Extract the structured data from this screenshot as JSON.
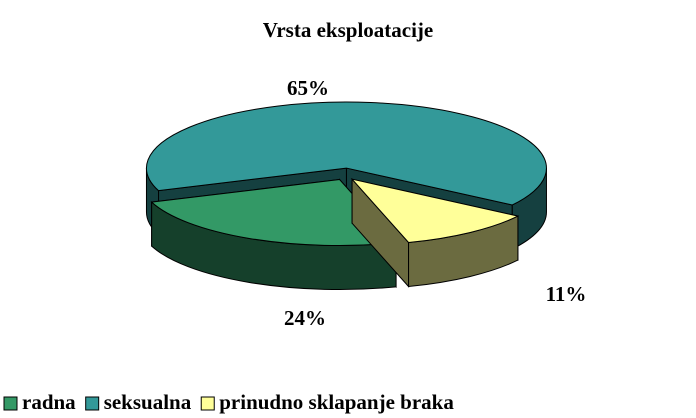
{
  "chart_data": {
    "type": "pie3d",
    "title": "Vrsta eksploatacije",
    "categories": [
      "radna",
      "seksualna",
      "prinudno sklapanje braka"
    ],
    "values": [
      24,
      65,
      11
    ],
    "value_labels": [
      "24%",
      "65%",
      "11%"
    ],
    "colors": [
      "#339966",
      "#339999",
      "#ffff99"
    ],
    "legend": "bottom"
  }
}
